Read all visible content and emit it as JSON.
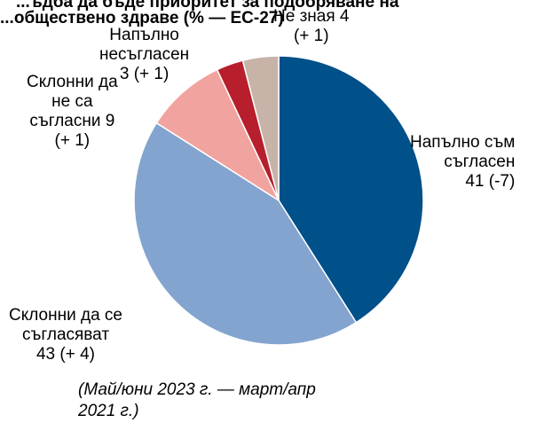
{
  "chart_data": {
    "type": "pie",
    "title": [
      "...ъдба да бъде приоритет за подобряване на",
      "...обществено здраве (% — ЕС-27)"
    ],
    "note": [
      "(Май/юни 2023 г. — март/апр",
      "2021 г.)"
    ],
    "slices": [
      {
        "label_lines": [
          "Напълно съм",
          "съгласен",
          "41 (-7)"
        ],
        "value": 41,
        "change": "-7",
        "color": "#00508a"
      },
      {
        "label_lines": [
          "Склонни да се",
          "съгласяват",
          "43 (+ 4)"
        ],
        "value": 43,
        "change": "+ 4",
        "color": "#83a4cf"
      },
      {
        "label_lines": [
          "Склонни да",
          "не са",
          "съгласни 9",
          "(+ 1)"
        ],
        "value": 9,
        "change": "+ 1",
        "color": "#f1a39f"
      },
      {
        "label_lines": [
          "Напълно",
          "несъгласен",
          "3 (+ 1)"
        ],
        "value": 3,
        "change": "+ 1",
        "color": "#b61f2b"
      },
      {
        "label_lines": [
          "Не зная 4",
          "(+ 1)"
        ],
        "value": 4,
        "change": "+ 1",
        "color": "#c7b3a8"
      }
    ]
  }
}
